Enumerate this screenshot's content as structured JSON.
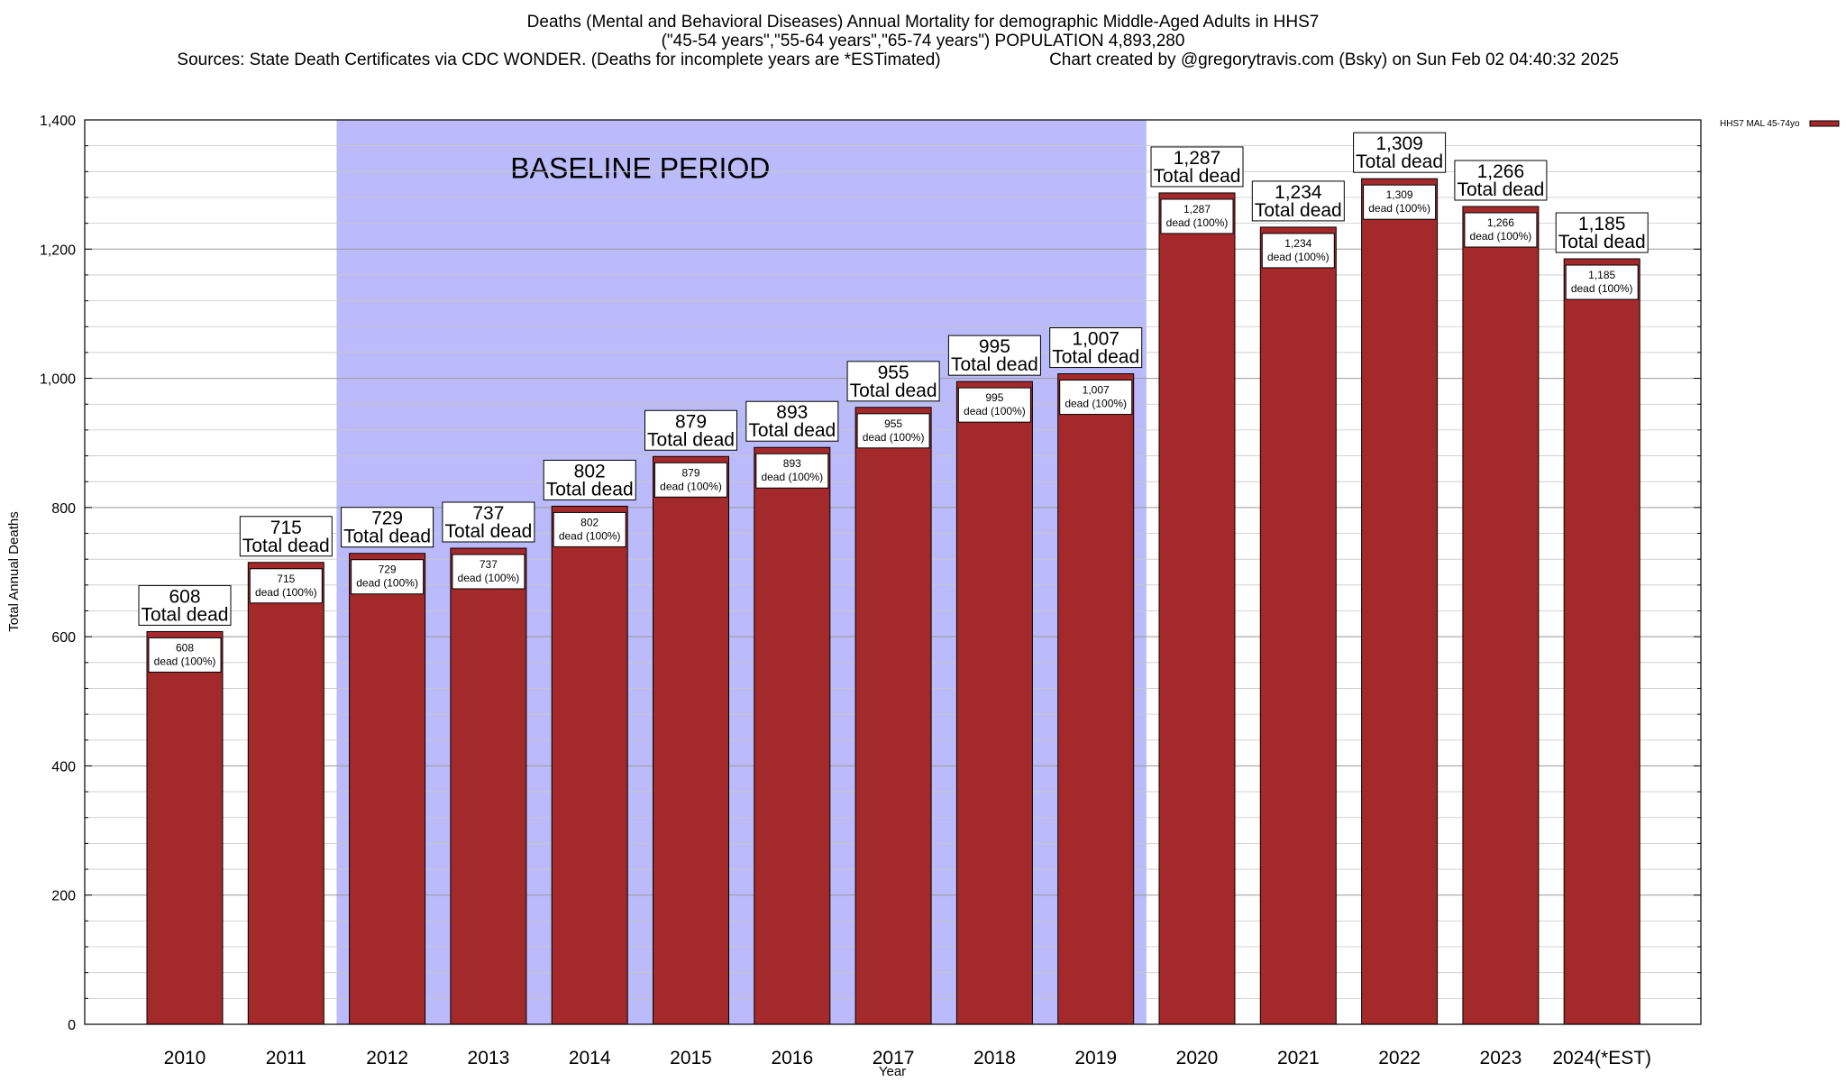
{
  "title": {
    "line1": "Deaths (Mental and Behavioral Diseases) Annual Mortality for demographic Middle-Aged Adults in HHS7",
    "line2": "(\"45-54 years\",\"55-64 years\",\"65-74 years\") POPULATION 4,893,280",
    "line3_left": "Sources: State Death Certificates via CDC WONDER. (Deaths for incomplete years are *ESTimated)",
    "line3_right": "Chart created by @gregorytravis.com (Bsky) on Sun Feb 02 04:40:32 2025"
  },
  "chart_data": {
    "type": "bar",
    "xlabel": "Year",
    "ylabel": "Total Annual Deaths",
    "ylim": [
      0,
      1400
    ],
    "yticks": [
      "0",
      "200",
      "400",
      "600",
      "800",
      "1,000",
      "1,200",
      "1,400"
    ],
    "grid": true,
    "categories": [
      "2010",
      "2011",
      "2012",
      "2013",
      "2014",
      "2015",
      "2016",
      "2017",
      "2018",
      "2019",
      "2020",
      "2021",
      "2022",
      "2023",
      "2024(*EST)"
    ],
    "value_labels": [
      "608",
      "715",
      "729",
      "737",
      "802",
      "879",
      "893",
      "955",
      "995",
      "1,007",
      "1,287",
      "1,234",
      "1,309",
      "1,266",
      "1,185"
    ],
    "series": [
      {
        "name": "HHS7 MAL 45-74yo",
        "color": "#a4292b",
        "values": [
          608,
          715,
          729,
          737,
          802,
          879,
          893,
          955,
          995,
          1007,
          1287,
          1234,
          1309,
          1266,
          1185
        ]
      }
    ],
    "total_label": "Total dead",
    "inner_label": "dead (100%)",
    "baseline": {
      "label": "BASELINE PERIOD",
      "from": "2012",
      "to": "2019",
      "color": "#bbbbfb"
    },
    "legend_position": "top-right"
  }
}
